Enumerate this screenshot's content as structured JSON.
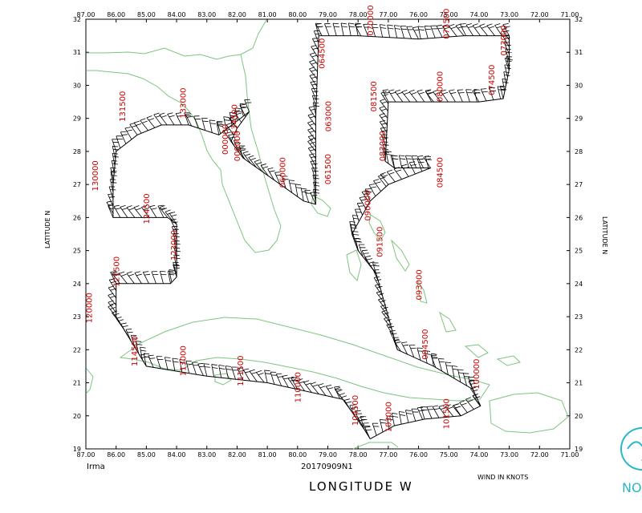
{
  "storm": "Irma",
  "mission_id": "20170909N1",
  "xlabel": "LONGITUDE   W",
  "ylabel_left": "LATITUDE   N",
  "ylabel_right": "LATITUDE   N",
  "wind_units": "WIND IN KNOTS",
  "logo_text": "NO",
  "colors": {
    "coast": "#7fc47f",
    "label": "#cc0000",
    "track": "#000000",
    "logo": "#2ab7c9"
  },
  "x_ticks": [
    "87.00",
    "86.00",
    "85.00",
    "84.00",
    "83.00",
    "82.00",
    "81.00",
    "80.00",
    "79.00",
    "78.00",
    "77.00",
    "76.00",
    "75.00",
    "74.00",
    "73.00",
    "72.00",
    "71.00"
  ],
  "y_ticks": [
    "32",
    "31",
    "30",
    "29",
    "28",
    "27",
    "26",
    "25",
    "24",
    "23",
    "22",
    "21",
    "20",
    "19"
  ],
  "chart_data": {
    "type": "map",
    "xlim": [
      -87,
      -71
    ],
    "ylim": [
      19,
      32
    ],
    "track_lon_lat": [
      [
        -77.6,
        19.3
      ],
      [
        -76.8,
        19.7
      ],
      [
        -75.8,
        19.9
      ],
      [
        -74.6,
        20.0
      ],
      [
        -73.95,
        20.3
      ],
      [
        -74.2,
        20.8
      ],
      [
        -75.5,
        21.5
      ],
      [
        -76.7,
        22.0
      ],
      [
        -77.0,
        23.0
      ],
      [
        -77.4,
        24.3
      ],
      [
        -78.0,
        25.0
      ],
      [
        -78.2,
        25.5
      ],
      [
        -77.6,
        26.5
      ],
      [
        -77.0,
        27.0
      ],
      [
        -75.6,
        27.5
      ],
      [
        -76.8,
        27.5
      ],
      [
        -77.1,
        27.7
      ],
      [
        -77.0,
        29.5
      ],
      [
        -75.5,
        29.5
      ],
      [
        -74.0,
        29.5
      ],
      [
        -73.2,
        29.6
      ],
      [
        -73.0,
        30.5
      ],
      [
        -73.0,
        31.5
      ],
      [
        -74.5,
        31.5
      ],
      [
        -76.0,
        31.4
      ],
      [
        -78.0,
        31.5
      ],
      [
        -79.3,
        31.5
      ],
      [
        -79.4,
        29.0
      ],
      [
        -79.4,
        28.0
      ],
      [
        -79.4,
        26.4
      ],
      [
        -79.8,
        26.5
      ],
      [
        -81.8,
        27.8
      ],
      [
        -82.2,
        28.3
      ],
      [
        -82.0,
        28.7
      ],
      [
        -81.6,
        29.2
      ],
      [
        -82.6,
        28.5
      ],
      [
        -83.6,
        28.8
      ],
      [
        -84.5,
        28.8
      ],
      [
        -85.3,
        28.5
      ],
      [
        -86.0,
        28.0
      ],
      [
        -86.1,
        27.0
      ],
      [
        -86.1,
        26.0
      ],
      [
        -84.3,
        26.0
      ],
      [
        -84.0,
        25.8
      ],
      [
        -84.0,
        24.2
      ],
      [
        -84.2,
        24.0
      ],
      [
        -86.0,
        24.0
      ],
      [
        -86.0,
        23.0
      ],
      [
        -85.0,
        21.5
      ],
      [
        -83.0,
        21.2
      ],
      [
        -81.0,
        21.0
      ],
      [
        -80.0,
        20.8
      ],
      [
        -78.5,
        20.5
      ],
      [
        -77.8,
        19.6
      ],
      [
        -77.6,
        19.3
      ]
    ],
    "time_labels": [
      {
        "text": "131500",
        "lon": -85.7,
        "lat": 28.9
      },
      {
        "text": "133000",
        "lon": -83.7,
        "lat": 29.0
      },
      {
        "text": "134500",
        "lon": -82.0,
        "lat": 28.5
      },
      {
        "text": "000000",
        "lon": -82.3,
        "lat": 27.9
      },
      {
        "text": "000000",
        "lon": -81.9,
        "lat": 27.7
      },
      {
        "text": "130000",
        "lon": -86.6,
        "lat": 26.8
      },
      {
        "text": "124500",
        "lon": -84.9,
        "lat": 25.8
      },
      {
        "text": "123000",
        "lon": -84.0,
        "lat": 24.7
      },
      {
        "text": "121500",
        "lon": -85.9,
        "lat": 23.9
      },
      {
        "text": "120000",
        "lon": -86.8,
        "lat": 22.8
      },
      {
        "text": "114500",
        "lon": -85.3,
        "lat": 21.5
      },
      {
        "text": "113000",
        "lon": -83.7,
        "lat": 21.2
      },
      {
        "text": "111500",
        "lon": -81.8,
        "lat": 20.9
      },
      {
        "text": "110000",
        "lon": -79.9,
        "lat": 20.4
      },
      {
        "text": "104500",
        "lon": -78.0,
        "lat": 19.7
      },
      {
        "text": "103000",
        "lon": -76.9,
        "lat": 19.5
      },
      {
        "text": "101500",
        "lon": -75.0,
        "lat": 19.6
      },
      {
        "text": "100000",
        "lon": -74.0,
        "lat": 20.8
      },
      {
        "text": "094500",
        "lon": -75.7,
        "lat": 21.7
      },
      {
        "text": "093000",
        "lon": -75.9,
        "lat": 23.5
      },
      {
        "text": "091500",
        "lon": -77.2,
        "lat": 24.8
      },
      {
        "text": "090000",
        "lon": -77.6,
        "lat": 25.9
      },
      {
        "text": "084500",
        "lon": -75.2,
        "lat": 26.9
      },
      {
        "text": "083000",
        "lon": -77.1,
        "lat": 27.7
      },
      {
        "text": "081500",
        "lon": -77.4,
        "lat": 29.2
      },
      {
        "text": "080000",
        "lon": -75.2,
        "lat": 29.5
      },
      {
        "text": "074500",
        "lon": -73.5,
        "lat": 29.7
      },
      {
        "text": "073000",
        "lon": -73.1,
        "lat": 30.9
      },
      {
        "text": "071500",
        "lon": -75.0,
        "lat": 31.4
      },
      {
        "text": "070000",
        "lon": -77.5,
        "lat": 31.5
      },
      {
        "text": "064500",
        "lon": -79.1,
        "lat": 30.5
      },
      {
        "text": "063000",
        "lon": -78.9,
        "lat": 28.6
      },
      {
        "text": "061500",
        "lon": -78.9,
        "lat": 27.0
      },
      {
        "text": "060000",
        "lon": -80.4,
        "lat": 26.9
      }
    ]
  }
}
